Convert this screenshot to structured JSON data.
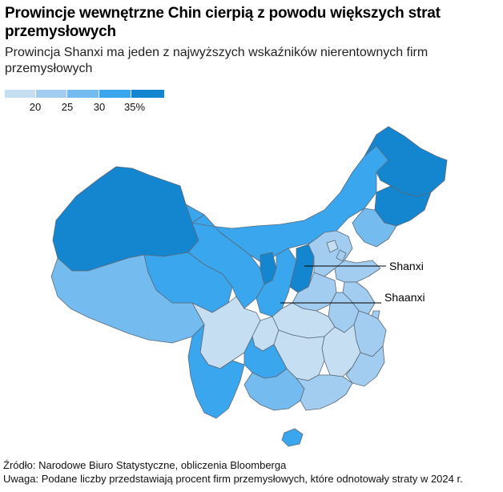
{
  "title": "Prowincje wewnętrzne Chin cierpią z powodu większych strat przemysłowych",
  "subtitle": "Prowincja Shanxi ma jeden z najwyższych wskaźników nierentownych firm przemysłowych",
  "legend": {
    "colors": [
      "#c6def2",
      "#a2cdf0",
      "#74bcf0",
      "#3aa6ee",
      "#1486cf"
    ],
    "ticks": [
      "20",
      "25",
      "30",
      "35%"
    ]
  },
  "callouts": {
    "shanxi": "Shanxi",
    "shaanxi": "Shaanxi"
  },
  "footer": {
    "source": "Źródło: Narodowe Biuro Statystyczne, obliczenia Bloomberga",
    "note": "Uwaga: Podane liczby przedstawiają procent firm przemysłowych, które odnotowały straty w 2024 r."
  }
}
